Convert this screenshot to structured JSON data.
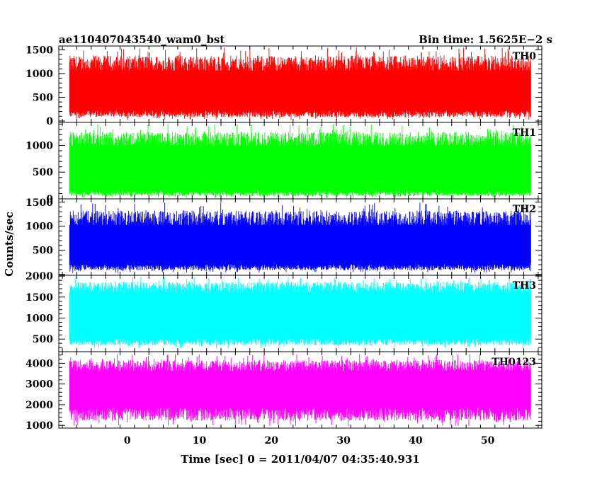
{
  "header": {
    "title": "ae110407043540_wam0_bst",
    "bin_time": "Bin time: 1.5625E−2 s"
  },
  "xaxis": {
    "label": "Time [sec] 0 = 2011/04/07 04:35:40.931"
  },
  "ylabel": "Counts/sec",
  "chart_data": {
    "type": "line",
    "title": "ae110407043540_wam0_bst",
    "subtitle": "Bin time: 1.5625E−2 s",
    "xlabel": "Time [sec] 0 = 2011/04/07 04:35:40.931",
    "ylabel": "Counts/sec",
    "xlim": [
      -9.5,
      57.5
    ],
    "x_ticks": [
      0,
      10,
      20,
      30,
      40,
      50
    ],
    "x_range": [
      -8,
      56
    ],
    "bin_time": 0.015625,
    "grid": false,
    "panels": [
      {
        "name": "TH0",
        "color": "#ff0000",
        "ylim": [
          -30,
          1580
        ],
        "y_ticks": [
          0,
          500,
          1000,
          1500
        ],
        "level_center": 650,
        "level_low": 180,
        "level_high": 1120,
        "spike_min": 20,
        "spike_max": 1560
      },
      {
        "name": "TH1",
        "color": "#00ff00",
        "ylim": [
          0,
          1430
        ],
        "y_ticks": [
          0,
          500,
          1000
        ],
        "level_center": 620,
        "level_low": 120,
        "level_high": 1050,
        "spike_min": 10,
        "spike_max": 1400
      },
      {
        "name": "TH2",
        "color": "#0000ff",
        "ylim": [
          -20,
          1570
        ],
        "y_ticks": [
          500,
          1000,
          1500
        ],
        "level_center": 650,
        "level_low": 170,
        "level_high": 1080,
        "spike_min": 30,
        "spike_max": 1500
      },
      {
        "name": "TH3",
        "color": "#00ffff",
        "ylim": [
          200,
          2020
        ],
        "y_ticks": [
          500,
          1000,
          1500,
          2000
        ],
        "level_center": 1100,
        "level_low": 470,
        "level_high": 1680,
        "spike_min": 280,
        "spike_max": 1990
      },
      {
        "name": "TH0123",
        "color": "#ff00ff",
        "ylim": [
          870,
          4560
        ],
        "y_ticks": [
          1000,
          2000,
          3000,
          4000
        ],
        "level_center": 2750,
        "level_low": 1700,
        "level_high": 3750,
        "spike_min": 950,
        "spike_max": 4450
      }
    ]
  }
}
